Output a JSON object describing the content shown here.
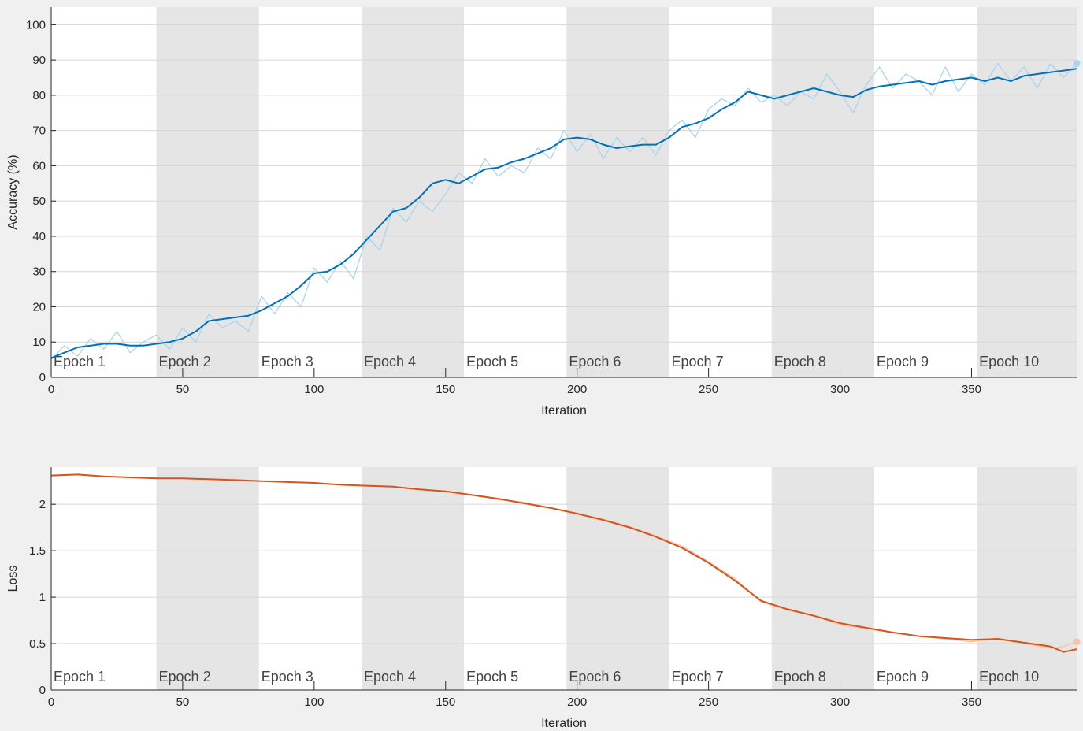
{
  "chart_data": [
    {
      "type": "line",
      "xlabel": "Iteration",
      "ylabel": "Accuracy (%)",
      "xlim": [
        0,
        390
      ],
      "ylim": [
        0,
        105
      ],
      "xticks": [
        0,
        50,
        100,
        150,
        200,
        250,
        300,
        350
      ],
      "yticks": [
        0,
        10,
        20,
        30,
        40,
        50,
        60,
        70,
        80,
        90,
        100
      ],
      "grid": "horizontal",
      "epoch_labels": [
        "Epoch 1",
        "Epoch 2",
        "Epoch 3",
        "Epoch 4",
        "Epoch 5",
        "Epoch 6",
        "Epoch 7",
        "Epoch 8",
        "Epoch 9",
        "Epoch 10"
      ],
      "epoch_bounds": [
        0,
        40,
        79,
        118,
        157,
        196,
        235,
        274,
        313,
        352,
        390
      ],
      "series": [
        {
          "role": "raw",
          "color": "#a9d4ec",
          "x": [
            0,
            5,
            10,
            15,
            20,
            25,
            30,
            35,
            40,
            45,
            50,
            55,
            60,
            65,
            70,
            75,
            80,
            85,
            90,
            95,
            100,
            105,
            110,
            115,
            120,
            125,
            130,
            135,
            140,
            145,
            150,
            155,
            160,
            165,
            170,
            175,
            180,
            185,
            190,
            195,
            200,
            205,
            210,
            215,
            220,
            225,
            230,
            235,
            240,
            245,
            250,
            255,
            260,
            265,
            270,
            275,
            280,
            285,
            290,
            295,
            300,
            305,
            310,
            315,
            320,
            325,
            330,
            335,
            340,
            345,
            350,
            355,
            360,
            365,
            370,
            375,
            380,
            385,
            390
          ],
          "values": [
            5,
            9,
            6,
            11,
            8,
            13,
            7,
            10,
            12,
            8,
            14,
            10,
            18,
            14,
            16,
            13,
            23,
            18,
            24,
            20,
            31,
            27,
            33,
            28,
            40,
            36,
            48,
            44,
            50,
            47,
            52,
            58,
            55,
            62,
            57,
            60,
            58,
            65,
            62,
            70,
            64,
            69,
            62,
            68,
            64,
            68,
            63,
            70,
            73,
            68,
            76,
            79,
            77,
            82,
            78,
            80,
            77,
            81,
            79,
            86,
            81,
            75,
            83,
            88,
            82,
            86,
            84,
            80,
            88,
            81,
            86,
            83,
            89,
            84,
            88,
            82,
            89,
            85,
            89
          ]
        },
        {
          "role": "smoothed",
          "color": "#0072bd",
          "x": [
            0,
            5,
            10,
            15,
            20,
            25,
            30,
            35,
            40,
            45,
            50,
            55,
            60,
            65,
            70,
            75,
            80,
            85,
            90,
            95,
            100,
            105,
            110,
            115,
            120,
            125,
            130,
            135,
            140,
            145,
            150,
            155,
            160,
            165,
            170,
            175,
            180,
            185,
            190,
            195,
            200,
            205,
            210,
            215,
            220,
            225,
            230,
            235,
            240,
            245,
            250,
            255,
            260,
            265,
            270,
            275,
            280,
            285,
            290,
            295,
            300,
            305,
            310,
            315,
            320,
            325,
            330,
            335,
            340,
            345,
            350,
            355,
            360,
            365,
            370,
            375,
            380,
            385,
            390
          ],
          "values": [
            5.5,
            7,
            8.5,
            9,
            9.5,
            9.5,
            9,
            9,
            9.5,
            10,
            11,
            13,
            16,
            16.5,
            17,
            17.5,
            19,
            21,
            23,
            26,
            29.5,
            30,
            32,
            35,
            39,
            43,
            47,
            48,
            51,
            55,
            56,
            55,
            57,
            59,
            59.5,
            61,
            62,
            63.5,
            65,
            67.5,
            68,
            67.5,
            66,
            65,
            65.5,
            66,
            66,
            68,
            71,
            72,
            73.5,
            76,
            78,
            81,
            80,
            79,
            80,
            81,
            82,
            81,
            80,
            79.5,
            81.5,
            82.5,
            83,
            83.5,
            84,
            83,
            84,
            84.5,
            85,
            84,
            85,
            84,
            85.5,
            86,
            86.5,
            87,
            87.5
          ]
        }
      ]
    },
    {
      "type": "line",
      "xlabel": "Iteration",
      "ylabel": "Loss",
      "xlim": [
        0,
        390
      ],
      "ylim": [
        0,
        2.4
      ],
      "xticks": [
        0,
        50,
        100,
        150,
        200,
        250,
        300,
        350
      ],
      "yticks": [
        0,
        0.5,
        1,
        1.5,
        2
      ],
      "grid": "horizontal",
      "epoch_labels": [
        "Epoch 1",
        "Epoch 2",
        "Epoch 3",
        "Epoch 4",
        "Epoch 5",
        "Epoch 6",
        "Epoch 7",
        "Epoch 8",
        "Epoch 9",
        "Epoch 10"
      ],
      "epoch_bounds": [
        0,
        40,
        79,
        118,
        157,
        196,
        235,
        274,
        313,
        352,
        390
      ],
      "series": [
        {
          "role": "raw",
          "color": "#f5c4ad",
          "x": [
            0,
            10,
            20,
            30,
            40,
            50,
            60,
            70,
            80,
            90,
            100,
            110,
            120,
            130,
            140,
            150,
            160,
            170,
            180,
            190,
            200,
            210,
            220,
            230,
            240,
            250,
            260,
            270,
            280,
            290,
            300,
            310,
            320,
            330,
            340,
            350,
            360,
            370,
            380,
            385,
            390
          ],
          "values": [
            2.31,
            2.32,
            2.3,
            2.29,
            2.28,
            2.28,
            2.27,
            2.27,
            2.25,
            2.24,
            2.23,
            2.21,
            2.2,
            2.19,
            2.16,
            2.14,
            2.1,
            2.05,
            2.02,
            1.96,
            1.9,
            1.84,
            1.76,
            1.66,
            1.55,
            1.38,
            1.2,
            0.95,
            0.86,
            0.8,
            0.7,
            0.66,
            0.62,
            0.58,
            0.55,
            0.52,
            0.56,
            0.5,
            0.45,
            0.47,
            0.52
          ]
        },
        {
          "role": "smoothed",
          "color": "#d95319",
          "x": [
            0,
            10,
            20,
            30,
            40,
            50,
            60,
            70,
            80,
            90,
            100,
            110,
            120,
            130,
            140,
            150,
            160,
            170,
            180,
            190,
            200,
            210,
            220,
            230,
            240,
            250,
            260,
            270,
            280,
            290,
            300,
            310,
            320,
            330,
            340,
            350,
            360,
            370,
            380,
            385,
            390
          ],
          "values": [
            2.31,
            2.32,
            2.3,
            2.29,
            2.28,
            2.28,
            2.27,
            2.26,
            2.25,
            2.24,
            2.23,
            2.21,
            2.2,
            2.19,
            2.16,
            2.14,
            2.1,
            2.06,
            2.01,
            1.96,
            1.9,
            1.83,
            1.75,
            1.65,
            1.53,
            1.37,
            1.18,
            0.96,
            0.87,
            0.8,
            0.72,
            0.67,
            0.62,
            0.58,
            0.56,
            0.54,
            0.55,
            0.51,
            0.47,
            0.41,
            0.44
          ]
        }
      ]
    }
  ]
}
